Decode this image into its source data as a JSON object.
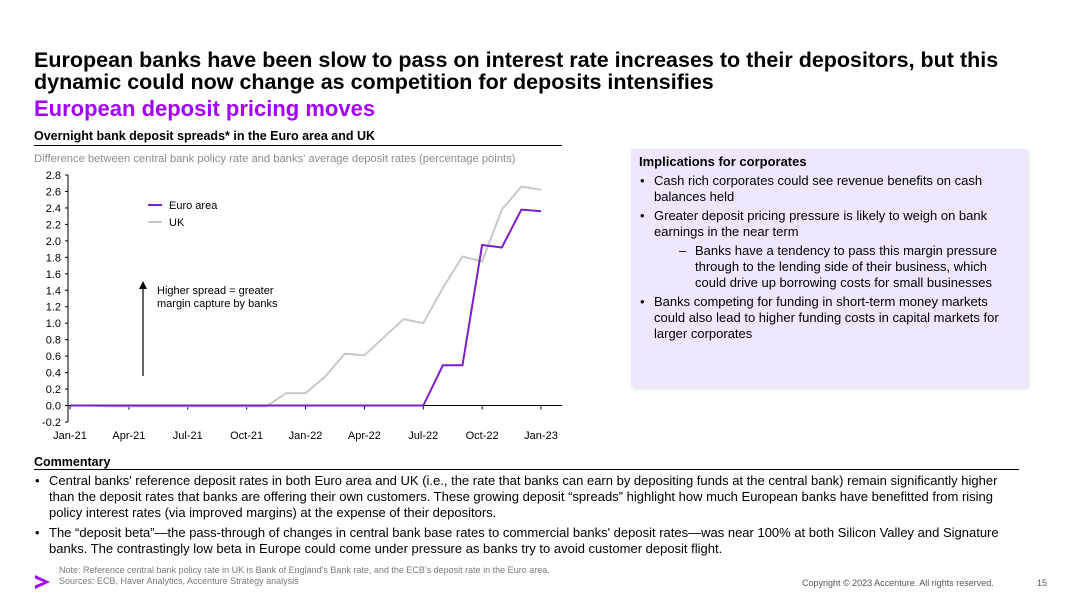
{
  "header": {
    "title": "European banks have been slow to pass on interest rate increases to their depositors, but this dynamic could now change as competition for deposits intensifies",
    "subtitle": "European deposit pricing moves"
  },
  "colors": {
    "accent": "#a100ff",
    "euro_line": "#7a1fc9",
    "uk_line": "#c8c8c8",
    "box_bg": "#f1e6ff"
  },
  "chart_data": {
    "type": "line",
    "title": "Overnight bank deposit spreads* in the Euro area and UK",
    "subtitle": "Difference between central bank policy rate and banks' average deposit rates (percentage points)",
    "ylim": [
      -0.2,
      2.8
    ],
    "yticks": [
      "2.8",
      "2.6",
      "2.4",
      "2.2",
      "2.0",
      "1.8",
      "1.6",
      "1.4",
      "1.2",
      "1.0",
      "0.8",
      "0.6",
      "0.4",
      "0.2",
      "0.0",
      "-0.2"
    ],
    "xticks": [
      "Jan-21",
      "Apr-21",
      "Jul-21",
      "Oct-21",
      "Jan-22",
      "Apr-22",
      "Jul-22",
      "Oct-22",
      "Jan-23"
    ],
    "x": [
      "Jan-21",
      "Feb-21",
      "Mar-21",
      "Apr-21",
      "May-21",
      "Jun-21",
      "Jul-21",
      "Aug-21",
      "Sep-21",
      "Oct-21",
      "Nov-21",
      "Dec-21",
      "Jan-22",
      "Feb-22",
      "Mar-22",
      "Apr-22",
      "May-22",
      "Jun-22",
      "Jul-22",
      "Aug-22",
      "Sep-22",
      "Oct-22",
      "Nov-22",
      "Dec-22",
      "Jan-23"
    ],
    "series": [
      {
        "name": "Euro area",
        "color": "#7a1fc9",
        "values": [
          0.0,
          0.0,
          0.0,
          0.0,
          0.0,
          0.0,
          0.0,
          0.0,
          0.0,
          0.0,
          0.0,
          0.0,
          0.0,
          0.0,
          0.0,
          0.0,
          0.0,
          0.0,
          0.0,
          0.49,
          0.49,
          1.95,
          1.92,
          2.38,
          2.36
        ]
      },
      {
        "name": "UK",
        "color": "#c8c8c8",
        "values": [
          0.0,
          0.0,
          -0.01,
          -0.01,
          -0.01,
          -0.01,
          -0.01,
          -0.01,
          -0.01,
          -0.01,
          -0.01,
          0.15,
          0.15,
          0.35,
          0.63,
          0.61,
          0.83,
          1.05,
          1.0,
          1.43,
          1.81,
          1.75,
          2.38,
          2.66,
          2.62
        ]
      }
    ],
    "annotation": "Higher spread = greater margin capture by banks",
    "legend": "top-left"
  },
  "implications": {
    "title": "Implications for corporates",
    "items": [
      {
        "text": "Cash rich corporates could see revenue benefits on cash balances held",
        "sub": false
      },
      {
        "text": "Greater deposit pricing pressure is likely to weigh on bank earnings in the near term",
        "sub": false
      },
      {
        "text": "Banks have a tendency to pass this margin pressure through to the lending side of their business, which could drive up borrowing costs for small businesses",
        "sub": true
      },
      {
        "text": "Banks competing for funding in short-term money markets could also lead to higher funding costs in capital markets for larger corporates",
        "sub": false
      }
    ]
  },
  "commentary": {
    "title": "Commentary",
    "items": [
      "Central banks' reference deposit rates in both Euro area and UK (i.e., the rate that banks can earn by depositing funds at the central bank) remain significantly higher than the deposit rates that banks are offering their own customers. These growing deposit “spreads” highlight how much European banks have benefitted from rising policy interest rates (via improved margins) at the expense of their depositors.",
      "The “deposit beta”—the pass-through of changes in central bank base rates to commercial banks' deposit rates—was near 100% at both Silicon Valley and Signature banks. The contrastingly low beta in Europe could come under pressure as banks try to avoid customer deposit flight."
    ]
  },
  "footer": {
    "note": "Note: Reference central bank policy rate in UK is Bank of England's Bank rate, and the ECB's deposit rate in the Euro area.",
    "sources": "Sources: ECB, Haver Analytics, Accenture Strategy analysis",
    "copyright": "Copyright © 2023 Accenture. All rights reserved.",
    "page": "15"
  },
  "logo": {
    "icon": "accenture-chevron-icon"
  }
}
